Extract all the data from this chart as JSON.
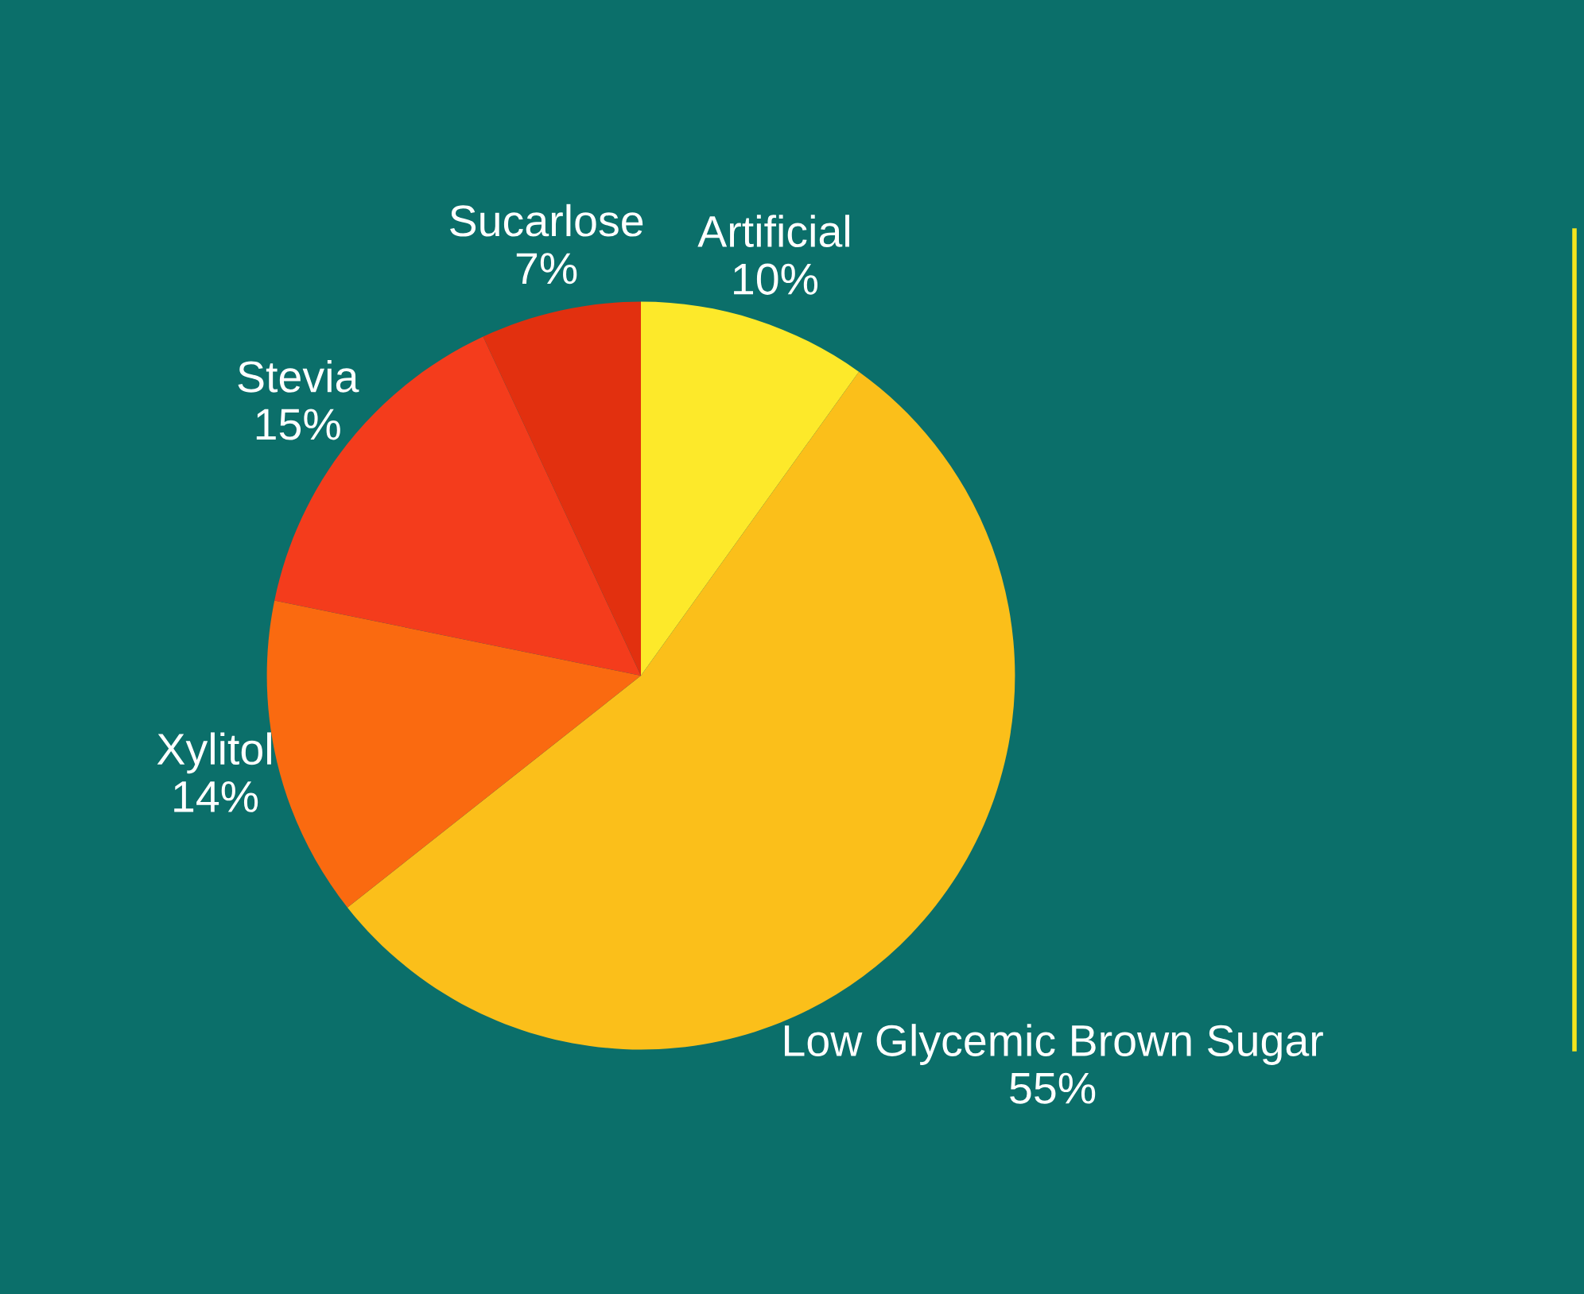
{
  "chart_data": {
    "type": "pie",
    "categories": [
      "Artificial",
      "Low Glycemic Brown Sugar",
      "Xylitol",
      "Stevia",
      "Sucarlose"
    ],
    "values": [
      10,
      55,
      14,
      15,
      7
    ],
    "value_labels": [
      "10%",
      "55%",
      "14%",
      "15%",
      "7%"
    ],
    "colors": [
      "#fde92a",
      "#fbbf1a",
      "#fa6a10",
      "#f43c1c",
      "#e2300f"
    ],
    "legend": false
  }
}
